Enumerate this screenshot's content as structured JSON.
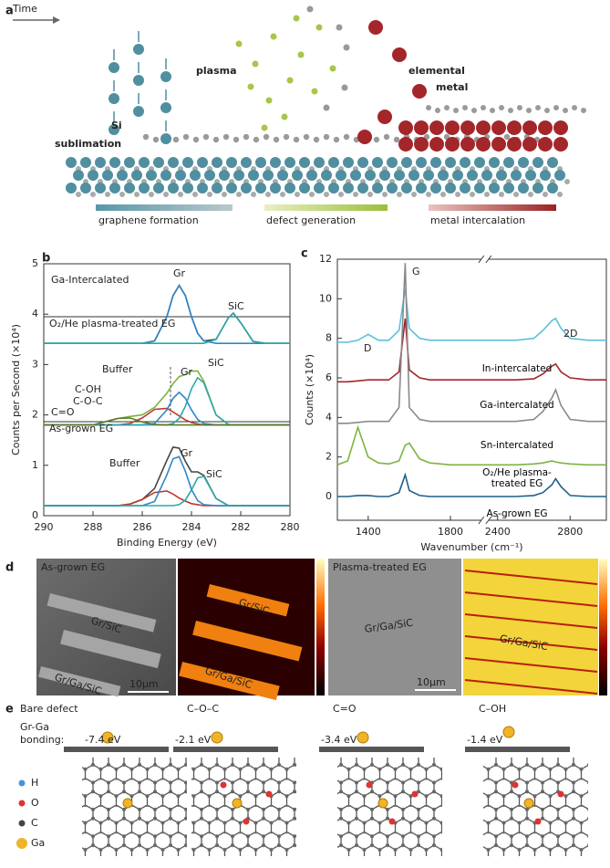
{
  "panel_a": {
    "label": "a",
    "time": "Time",
    "si_sublimation": [
      "Si",
      "sublimation"
    ],
    "plasma": "plasma",
    "elemental_metal": [
      "elemental",
      "metal"
    ],
    "stages": [
      "graphene formation",
      "defect generation",
      "metal intercalation"
    ]
  },
  "chart_data": [
    {
      "type": "line",
      "panel_label": "b",
      "xlabel": "Binding Energy (eV)",
      "ylabel": "Counts per Second (×10⁴)",
      "x": [
        290,
        289,
        288,
        287,
        286.5,
        286,
        285.5,
        285,
        284.75,
        284.5,
        284.25,
        284,
        283.75,
        283.5,
        283,
        282.5,
        282.3,
        282,
        281.5,
        281,
        280
      ],
      "xlim": [
        290,
        280
      ],
      "xticks": [
        290,
        288,
        286,
        284,
        282,
        280
      ],
      "ylim": [
        0,
        5
      ],
      "yticks": [
        0,
        1,
        2,
        3,
        4,
        5
      ],
      "spectrum_labels": [
        "Ga-Intercalated",
        "O₂/He plasma-treated EG",
        "As-grown EG"
      ],
      "annotations": [
        "Gr",
        "SiC",
        "Gr",
        "SiC",
        "Buffer",
        "C-OH",
        "C-O-C",
        "C=O",
        "Buffer",
        "Gr",
        "SiC"
      ],
      "series": [
        {
          "color": "#454545",
          "values": [
            3.42,
            3.42,
            3.42,
            3.42,
            3.42,
            3.42,
            3.47,
            3.95,
            4.37,
            4.57,
            4.37,
            3.95,
            3.62,
            3.47,
            3.5,
            3.93,
            4.02,
            3.83,
            3.46,
            3.42,
            3.42
          ]
        },
        {
          "color": "#2f86c9",
          "values": [
            3.42,
            3.42,
            3.42,
            3.42,
            3.42,
            3.42,
            3.47,
            3.95,
            4.37,
            4.57,
            4.37,
            3.95,
            3.62,
            3.47,
            3.42,
            3.42,
            3.42,
            3.42,
            3.42,
            3.42,
            3.42
          ]
        },
        {
          "color": "#2aa8a8",
          "values": [
            3.42,
            3.42,
            3.42,
            3.42,
            3.42,
            3.42,
            3.42,
            3.42,
            3.42,
            3.42,
            3.42,
            3.42,
            3.42,
            3.42,
            3.5,
            3.93,
            4.02,
            3.83,
            3.46,
            3.42,
            3.42
          ]
        },
        {
          "color": "#7db341",
          "values": [
            1.8,
            1.8,
            1.8,
            1.93,
            1.97,
            2.0,
            2.15,
            2.43,
            2.62,
            2.76,
            2.8,
            2.87,
            2.87,
            2.67,
            2.0,
            1.81,
            1.8,
            1.8,
            1.8,
            1.8,
            1.8
          ]
        },
        {
          "color": "#c0392b",
          "values": [
            1.8,
            1.8,
            1.8,
            1.8,
            1.83,
            1.94,
            2.11,
            2.13,
            2.06,
            1.98,
            1.9,
            1.85,
            1.82,
            1.8,
            1.8,
            1.8,
            1.8,
            1.8,
            1.8,
            1.8,
            1.8
          ]
        },
        {
          "color": "#2f86c9",
          "values": [
            1.8,
            1.8,
            1.8,
            1.8,
            1.8,
            1.8,
            1.83,
            2.1,
            2.33,
            2.45,
            2.33,
            2.1,
            1.91,
            1.83,
            1.8,
            1.8,
            1.8,
            1.8,
            1.8,
            1.8,
            1.8
          ]
        },
        {
          "color": "#2aa8a8",
          "values": [
            1.8,
            1.8,
            1.8,
            1.8,
            1.8,
            1.8,
            1.8,
            1.8,
            1.83,
            1.93,
            2.17,
            2.52,
            2.74,
            2.64,
            2.0,
            1.81,
            1.8,
            1.8,
            1.8,
            1.8,
            1.8
          ]
        },
        {
          "color": "#5c7a2a",
          "values": [
            1.8,
            1.8,
            1.8,
            1.93,
            1.94,
            1.86,
            1.81,
            1.8,
            1.8,
            1.8,
            1.8,
            1.8,
            1.8,
            1.8,
            1.8,
            1.8,
            1.8,
            1.8,
            1.8,
            1.8,
            1.8
          ]
        },
        {
          "color": "#454545",
          "values": [
            0.2,
            0.2,
            0.2,
            0.2,
            0.23,
            0.32,
            0.54,
            1.1,
            1.36,
            1.34,
            1.08,
            0.87,
            0.87,
            0.8,
            0.34,
            0.2,
            0.2,
            0.2,
            0.2,
            0.2,
            0.2
          ]
        },
        {
          "color": "#c0392b",
          "values": [
            0.2,
            0.2,
            0.2,
            0.2,
            0.23,
            0.32,
            0.46,
            0.49,
            0.43,
            0.35,
            0.29,
            0.24,
            0.22,
            0.2,
            0.2,
            0.2,
            0.2,
            0.2,
            0.2,
            0.2,
            0.2
          ]
        },
        {
          "color": "#2f86c9",
          "values": [
            0.2,
            0.2,
            0.2,
            0.2,
            0.2,
            0.2,
            0.28,
            0.81,
            1.13,
            1.17,
            0.88,
            0.52,
            0.3,
            0.22,
            0.2,
            0.2,
            0.2,
            0.2,
            0.2,
            0.2,
            0.2
          ]
        },
        {
          "color": "#2aa8a8",
          "values": [
            0.2,
            0.2,
            0.2,
            0.2,
            0.2,
            0.2,
            0.2,
            0.2,
            0.2,
            0.22,
            0.31,
            0.51,
            0.75,
            0.78,
            0.34,
            0.2,
            0.2,
            0.2,
            0.2,
            0.2,
            0.2
          ]
        }
      ]
    },
    {
      "type": "line",
      "panel_label": "c",
      "xlabel": "Wavenumber (cm⁻¹)",
      "ylabel": "Counts (×10⁴)",
      "x": [
        1250,
        1300,
        1350,
        1400,
        1450,
        1500,
        1550,
        1580,
        1600,
        1650,
        1700,
        1800,
        1900,
        2400,
        2500,
        2600,
        2650,
        2700,
        2720,
        2750,
        2800,
        2900,
        3000
      ],
      "xlim": [
        1250,
        3000
      ],
      "xbreak": [
        1950,
        2350
      ],
      "xticks": [
        1400,
        1800,
        2400,
        2800
      ],
      "ylim": [
        -1.2,
        12
      ],
      "yticks": [
        0,
        2,
        4,
        6,
        8,
        10,
        12
      ],
      "annotations": [
        "D",
        "G",
        "2D"
      ],
      "series": [
        {
          "name": "In-intercalated",
          "color": "#5bc0de",
          "values": [
            7.8,
            7.8,
            7.9,
            8.2,
            7.9,
            7.9,
            8.4,
            10.5,
            8.5,
            8.0,
            7.9,
            7.9,
            7.9,
            7.9,
            7.9,
            8.0,
            8.4,
            8.9,
            9.0,
            8.5,
            8.0,
            7.9,
            7.9
          ]
        },
        {
          "name": "Ga-intercalated",
          "color": "#a3262a",
          "values": [
            5.8,
            5.8,
            5.85,
            5.9,
            5.9,
            5.9,
            6.3,
            9.0,
            6.4,
            6.0,
            5.9,
            5.9,
            5.9,
            5.9,
            5.9,
            5.95,
            6.2,
            6.6,
            6.7,
            6.3,
            6.0,
            5.9,
            5.9
          ]
        },
        {
          "name": "Sn-intercalated",
          "color": "#8a8a8a",
          "values": [
            3.7,
            3.7,
            3.75,
            3.8,
            3.8,
            3.8,
            4.5,
            11.8,
            4.5,
            3.9,
            3.8,
            3.8,
            3.8,
            3.8,
            3.8,
            3.9,
            4.3,
            5.0,
            5.4,
            4.6,
            3.9,
            3.8,
            3.8
          ]
        },
        {
          "name": "O₂/He plasma-treated EG",
          "color": "#7db341",
          "values": [
            1.6,
            1.8,
            3.5,
            2.0,
            1.7,
            1.65,
            1.8,
            2.6,
            2.7,
            1.9,
            1.7,
            1.6,
            1.6,
            1.6,
            1.6,
            1.65,
            1.7,
            1.8,
            1.75,
            1.7,
            1.65,
            1.6,
            1.6
          ]
        },
        {
          "name": "As-grown EG",
          "color": "#1f5f8b",
          "values": [
            0,
            0,
            0.05,
            0.05,
            0,
            0,
            0.2,
            1.1,
            0.3,
            0.05,
            0,
            0,
            0,
            0,
            0,
            0.05,
            0.2,
            0.6,
            0.9,
            0.5,
            0.05,
            0,
            0
          ]
        }
      ]
    }
  ],
  "panel_d": {
    "label": "d",
    "left_title": "As-grown EG",
    "right_title": "Plasma-treated EG",
    "labels": [
      "Gr/SiC",
      "Gr/Ga/SiC",
      "Gr/SiC",
      "Gr/Ga/SiC",
      "Gr/Ga/SiC",
      "Gr/Ga/SiC"
    ],
    "scale_bars": [
      "10µm",
      "10µm"
    ]
  },
  "panel_e": {
    "label": "e",
    "bonding_label": [
      "Gr-Ga",
      "bonding:"
    ],
    "columns": [
      {
        "title": "Bare defect",
        "energy": "-7.4 eV"
      },
      {
        "title": "C–O–C",
        "energy": "-2.1 eV"
      },
      {
        "title": "C=O",
        "energy": "-3.4 eV"
      },
      {
        "title": "C–OH",
        "energy": "-1.4 eV"
      }
    ],
    "legend": [
      "H",
      "O",
      "C",
      "Ga"
    ]
  }
}
